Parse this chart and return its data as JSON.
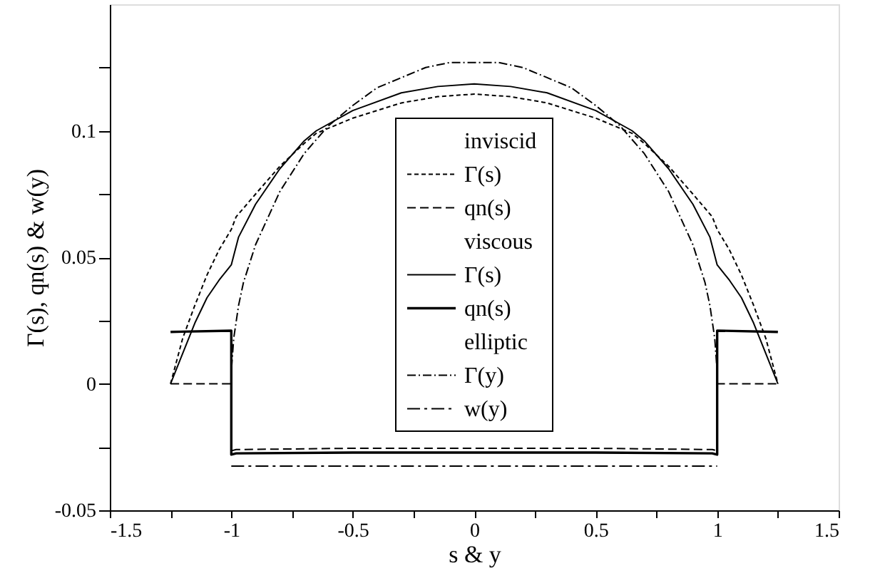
{
  "chart_data": {
    "type": "line",
    "xlabel": "s & y",
    "ylabel": "Γ(s), qn(s) & w(y)",
    "xlim": [
      -1.5,
      1.5
    ],
    "ylim": [
      -0.05,
      0.15
    ],
    "xticks": [
      -1.5,
      {
        "value": -1.25,
        "label": null
      },
      -1,
      {
        "value": -0.75,
        "label": null
      },
      -0.5,
      {
        "value": -0.25,
        "label": null
      },
      0,
      {
        "value": 0.25,
        "label": null
      },
      0.5,
      {
        "value": 0.75,
        "label": null
      },
      1,
      {
        "value": 1.25,
        "label": null
      },
      1.5
    ],
    "yticks": [
      -0.05,
      {
        "value": -0.025,
        "label": null
      },
      0,
      {
        "value": 0.025,
        "label": null
      },
      0.05,
      {
        "value": 0.075,
        "label": null
      },
      0.1,
      {
        "value": 0.125,
        "label": null
      }
    ],
    "grid": false,
    "legend": "center",
    "marker": "none",
    "annotations": [
      "inviscid",
      "viscous",
      "elliptic"
    ],
    "series": [
      {
        "name": "Γ(s)",
        "color": "#000000",
        "line_style": "dashed",
        "x": [
          -1.25,
          -1.2,
          -1.15,
          -1.1,
          -1.05,
          -1.0,
          -0.98,
          -0.9,
          -0.8,
          -0.7,
          -0.65,
          -0.5,
          -0.3,
          -0.15,
          0,
          0.15,
          0.3,
          0.5,
          0.65,
          0.7,
          0.8,
          0.9,
          0.98,
          1.0,
          1.05,
          1.1,
          1.15,
          1.2,
          1.25
        ],
        "values": [
          0,
          0.018,
          0.031,
          0.043,
          0.053,
          0.061,
          0.066,
          0.075,
          0.086,
          0.095,
          0.099,
          0.105,
          0.111,
          0.1135,
          0.1145,
          0.1135,
          0.111,
          0.105,
          0.099,
          0.095,
          0.086,
          0.075,
          0.066,
          0.061,
          0.053,
          0.043,
          0.031,
          0.018,
          0
        ]
      },
      {
        "name": "qn(s)",
        "color": "#000000",
        "line_style": "dashed",
        "x": [
          -1.25,
          -1,
          -1,
          -0.98,
          -0.5,
          0,
          0.5,
          0.98,
          1,
          1,
          1.25
        ],
        "values": [
          0,
          0,
          -0.0265,
          -0.026,
          -0.0255,
          -0.0255,
          -0.0255,
          -0.026,
          -0.0265,
          0,
          0
        ]
      },
      {
        "name": "Γ(s)",
        "color": "#000000",
        "line_style": "solid",
        "x": [
          -1.25,
          -1.2,
          -1.15,
          -1.1,
          -1.05,
          -1.0,
          -0.97,
          -0.9,
          -0.8,
          -0.7,
          -0.65,
          -0.5,
          -0.3,
          -0.15,
          0,
          0.15,
          0.3,
          0.5,
          0.65,
          0.7,
          0.8,
          0.9,
          0.97,
          1.0,
          1.05,
          1.1,
          1.15,
          1.2,
          1.25
        ],
        "values": [
          0,
          0.012,
          0.024,
          0.034,
          0.041,
          0.047,
          0.058,
          0.071,
          0.085,
          0.096,
          0.1,
          0.108,
          0.115,
          0.1175,
          0.1185,
          0.1175,
          0.115,
          0.108,
          0.1,
          0.096,
          0.085,
          0.071,
          0.058,
          0.047,
          0.041,
          0.034,
          0.024,
          0.012,
          0
        ]
      },
      {
        "name": "qn(s)",
        "color": "#000000",
        "line_style": "solid",
        "x": [
          -1.25,
          -1,
          -1,
          -0.98,
          -0.5,
          0,
          0.5,
          0.98,
          1,
          1,
          1.25
        ],
        "values": [
          0.0205,
          0.021,
          -0.028,
          -0.0275,
          -0.0272,
          -0.0272,
          -0.0272,
          -0.0275,
          -0.028,
          0.021,
          0.0205
        ]
      },
      {
        "name": "Γ(y)",
        "color": "#000000",
        "line_style": "dotted",
        "x": [
          -1,
          -0.999,
          -0.99,
          -0.97,
          -0.95,
          -0.9,
          -0.8,
          -0.7,
          -0.6,
          -0.5,
          -0.4,
          -0.3,
          -0.2,
          -0.1,
          0,
          0.1,
          0.2,
          0.3,
          0.4,
          0.5,
          0.6,
          0.7,
          0.8,
          0.9,
          0.95,
          0.97,
          0.99,
          0.999,
          1
        ],
        "values": [
          0,
          0.006,
          0.018,
          0.031,
          0.04,
          0.055,
          0.076,
          0.091,
          0.102,
          0.11,
          0.117,
          0.121,
          0.125,
          0.127,
          0.127,
          0.127,
          0.125,
          0.121,
          0.117,
          0.11,
          0.102,
          0.091,
          0.076,
          0.055,
          0.04,
          0.031,
          0.018,
          0.006,
          0
        ]
      },
      {
        "name": "w(y)",
        "color": "#000000",
        "line_style": "dashed",
        "x": [
          -1,
          1
        ],
        "values": [
          -0.0325,
          -0.0325
        ]
      }
    ]
  }
}
